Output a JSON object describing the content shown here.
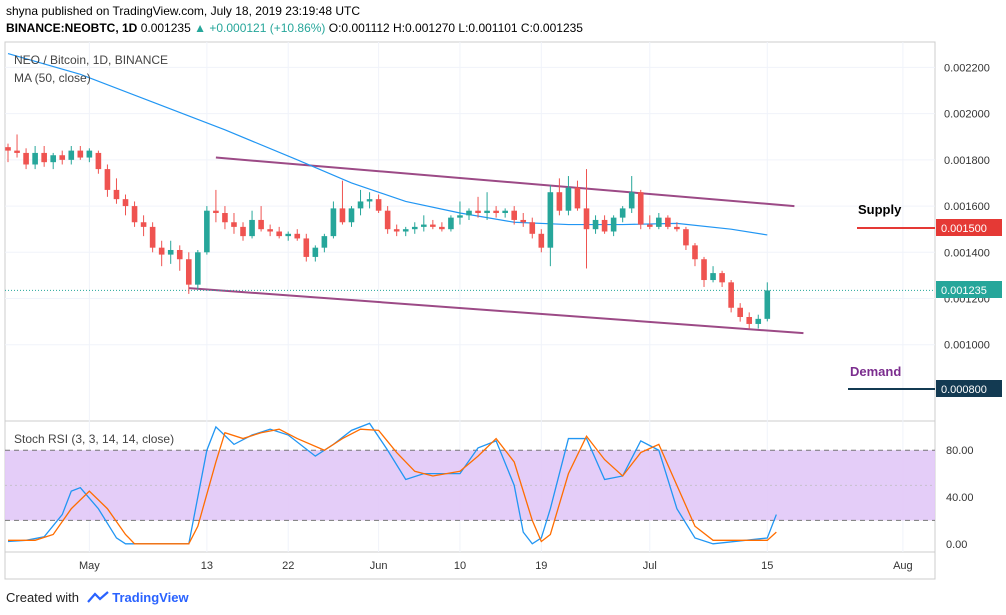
{
  "header": {
    "published_line": "shyna published on TradingView.com, July 18, 2019 23:19:48 UTC",
    "symbol_line": "BINANCE:NEOBTC, 1D",
    "last_price": "0.001235",
    "change": "+0.000121 (+10.86%)",
    "ohlc": "O:0.001112 H:0.001270 L:0.001101 C:0.001235"
  },
  "main_pane": {
    "symbol_label": "NEO / Bitcoin, 1D, BINANCE",
    "ma_label": "MA (50, close)",
    "supply_label": "Supply",
    "demand_label": "Demand",
    "current_price_tag": "0.001235",
    "supply_price_tag": "0.001500",
    "demand_price_tag": "0.000800"
  },
  "rsi_pane": {
    "label": "Stoch RSI (3, 3, 14, 14, close)"
  },
  "footer": {
    "created_with": "Created with",
    "brand": "TradingView"
  },
  "colors": {
    "up": "#26a69a",
    "down": "#ef5350",
    "ma": "#2196f3",
    "channel": "#9c4a86",
    "supply": "#e53935",
    "demand_tag": "#133a52",
    "rsi_k": "#2196f3",
    "rsi_d": "#ff6d00",
    "rsi_band": "#e1c8f7"
  },
  "chart_data": [
    {
      "type": "candlestick",
      "title": "NEO / Bitcoin, 1D, BINANCE",
      "y_ticks": [
        0.001,
        0.0012,
        0.0014,
        0.0016,
        0.0018,
        0.002,
        0.0022
      ],
      "y_tick_labels": [
        "0.001000",
        "0.001200",
        "0.001400",
        "0.001600",
        "0.001800",
        "0.002000",
        "0.002200"
      ],
      "ylim": [
        0.00067,
        0.00231
      ],
      "x_tick_labels": [
        "May",
        "13",
        "22",
        "Jun",
        "10",
        "19",
        "Jul",
        "15",
        "Aug"
      ],
      "x_tick_index": [
        9,
        22,
        31,
        41,
        50,
        59,
        71,
        84,
        99
      ],
      "x_range": [
        0,
        102
      ],
      "candles": [
        {
          "o": 0.001855,
          "h": 0.00187,
          "l": 0.00179,
          "c": 0.00184
        },
        {
          "o": 0.00184,
          "h": 0.00191,
          "l": 0.00181,
          "c": 0.00183
        },
        {
          "o": 0.00183,
          "h": 0.00185,
          "l": 0.00176,
          "c": 0.00178
        },
        {
          "o": 0.00178,
          "h": 0.00186,
          "l": 0.00176,
          "c": 0.00183
        },
        {
          "o": 0.00183,
          "h": 0.00186,
          "l": 0.00177,
          "c": 0.00179
        },
        {
          "o": 0.00179,
          "h": 0.00183,
          "l": 0.00176,
          "c": 0.00182
        },
        {
          "o": 0.00182,
          "h": 0.00184,
          "l": 0.00178,
          "c": 0.0018
        },
        {
          "o": 0.0018,
          "h": 0.00186,
          "l": 0.00178,
          "c": 0.00184
        },
        {
          "o": 0.00184,
          "h": 0.00186,
          "l": 0.0018,
          "c": 0.00181
        },
        {
          "o": 0.00181,
          "h": 0.00185,
          "l": 0.00179,
          "c": 0.00184
        },
        {
          "o": 0.00183,
          "h": 0.00184,
          "l": 0.00174,
          "c": 0.00176
        },
        {
          "o": 0.00176,
          "h": 0.00178,
          "l": 0.00164,
          "c": 0.00167
        },
        {
          "o": 0.00167,
          "h": 0.00172,
          "l": 0.00161,
          "c": 0.00163
        },
        {
          "o": 0.00163,
          "h": 0.00165,
          "l": 0.00156,
          "c": 0.0016
        },
        {
          "o": 0.0016,
          "h": 0.00162,
          "l": 0.00151,
          "c": 0.00153
        },
        {
          "o": 0.00153,
          "h": 0.00156,
          "l": 0.00147,
          "c": 0.00151
        },
        {
          "o": 0.00151,
          "h": 0.00153,
          "l": 0.0014,
          "c": 0.00142
        },
        {
          "o": 0.00142,
          "h": 0.00145,
          "l": 0.00134,
          "c": 0.00139
        },
        {
          "o": 0.00139,
          "h": 0.00145,
          "l": 0.00135,
          "c": 0.00141
        },
        {
          "o": 0.00141,
          "h": 0.00143,
          "l": 0.00132,
          "c": 0.00137
        },
        {
          "o": 0.00137,
          "h": 0.0014,
          "l": 0.00122,
          "c": 0.00126
        },
        {
          "o": 0.00126,
          "h": 0.00141,
          "l": 0.00124,
          "c": 0.0014
        },
        {
          "o": 0.0014,
          "h": 0.0016,
          "l": 0.00139,
          "c": 0.00158
        },
        {
          "o": 0.00158,
          "h": 0.00167,
          "l": 0.00153,
          "c": 0.00157
        },
        {
          "o": 0.00157,
          "h": 0.0016,
          "l": 0.0015,
          "c": 0.00153
        },
        {
          "o": 0.00153,
          "h": 0.00157,
          "l": 0.00148,
          "c": 0.00151
        },
        {
          "o": 0.00151,
          "h": 0.00153,
          "l": 0.00145,
          "c": 0.00147
        },
        {
          "o": 0.00147,
          "h": 0.00158,
          "l": 0.00146,
          "c": 0.00154
        },
        {
          "o": 0.00154,
          "h": 0.0016,
          "l": 0.00149,
          "c": 0.0015
        },
        {
          "o": 0.0015,
          "h": 0.00152,
          "l": 0.00147,
          "c": 0.00149
        },
        {
          "o": 0.00149,
          "h": 0.00151,
          "l": 0.00146,
          "c": 0.00147
        },
        {
          "o": 0.00147,
          "h": 0.00149,
          "l": 0.00145,
          "c": 0.00148
        },
        {
          "o": 0.00148,
          "h": 0.0015,
          "l": 0.00145,
          "c": 0.00146
        },
        {
          "o": 0.00146,
          "h": 0.00148,
          "l": 0.00136,
          "c": 0.00138
        },
        {
          "o": 0.00138,
          "h": 0.00143,
          "l": 0.00136,
          "c": 0.00142
        },
        {
          "o": 0.00142,
          "h": 0.00148,
          "l": 0.0014,
          "c": 0.00147
        },
        {
          "o": 0.00147,
          "h": 0.00162,
          "l": 0.00146,
          "c": 0.00159
        },
        {
          "o": 0.00159,
          "h": 0.00171,
          "l": 0.00152,
          "c": 0.00153
        },
        {
          "o": 0.00153,
          "h": 0.0016,
          "l": 0.00151,
          "c": 0.00159
        },
        {
          "o": 0.00159,
          "h": 0.00167,
          "l": 0.00156,
          "c": 0.00162
        },
        {
          "o": 0.00162,
          "h": 0.00166,
          "l": 0.00159,
          "c": 0.00163
        },
        {
          "o": 0.00163,
          "h": 0.00165,
          "l": 0.00157,
          "c": 0.00158
        },
        {
          "o": 0.00158,
          "h": 0.0016,
          "l": 0.00148,
          "c": 0.0015
        },
        {
          "o": 0.0015,
          "h": 0.00152,
          "l": 0.00147,
          "c": 0.00149
        },
        {
          "o": 0.00149,
          "h": 0.00151,
          "l": 0.00147,
          "c": 0.0015
        },
        {
          "o": 0.0015,
          "h": 0.00153,
          "l": 0.00148,
          "c": 0.00151
        },
        {
          "o": 0.00151,
          "h": 0.00156,
          "l": 0.00149,
          "c": 0.00152
        },
        {
          "o": 0.00152,
          "h": 0.00154,
          "l": 0.0015,
          "c": 0.00151
        },
        {
          "o": 0.00151,
          "h": 0.00153,
          "l": 0.00149,
          "c": 0.0015
        },
        {
          "o": 0.0015,
          "h": 0.00156,
          "l": 0.00149,
          "c": 0.00155
        },
        {
          "o": 0.00155,
          "h": 0.00162,
          "l": 0.00152,
          "c": 0.00156
        },
        {
          "o": 0.00156,
          "h": 0.00159,
          "l": 0.00154,
          "c": 0.00158
        },
        {
          "o": 0.00158,
          "h": 0.00164,
          "l": 0.00155,
          "c": 0.00157
        },
        {
          "o": 0.00157,
          "h": 0.00166,
          "l": 0.00154,
          "c": 0.00158
        },
        {
          "o": 0.00158,
          "h": 0.0016,
          "l": 0.00155,
          "c": 0.00157
        },
        {
          "o": 0.00157,
          "h": 0.00159,
          "l": 0.00155,
          "c": 0.00158
        },
        {
          "o": 0.00158,
          "h": 0.0016,
          "l": 0.00152,
          "c": 0.00154
        },
        {
          "o": 0.00154,
          "h": 0.00157,
          "l": 0.00151,
          "c": 0.00153
        },
        {
          "o": 0.00153,
          "h": 0.00155,
          "l": 0.00146,
          "c": 0.00148
        },
        {
          "o": 0.00148,
          "h": 0.0015,
          "l": 0.0014,
          "c": 0.00142
        },
        {
          "o": 0.00142,
          "h": 0.00169,
          "l": 0.00134,
          "c": 0.00166
        },
        {
          "o": 0.00166,
          "h": 0.00172,
          "l": 0.00156,
          "c": 0.00158
        },
        {
          "o": 0.00158,
          "h": 0.00173,
          "l": 0.00156,
          "c": 0.00168
        },
        {
          "o": 0.00168,
          "h": 0.00171,
          "l": 0.00158,
          "c": 0.00159
        },
        {
          "o": 0.00159,
          "h": 0.00176,
          "l": 0.00133,
          "c": 0.0015
        },
        {
          "o": 0.0015,
          "h": 0.00156,
          "l": 0.00148,
          "c": 0.00154
        },
        {
          "o": 0.00154,
          "h": 0.00156,
          "l": 0.00148,
          "c": 0.00149
        },
        {
          "o": 0.00149,
          "h": 0.00156,
          "l": 0.00147,
          "c": 0.00155
        },
        {
          "o": 0.00155,
          "h": 0.0016,
          "l": 0.00153,
          "c": 0.00159
        },
        {
          "o": 0.00159,
          "h": 0.00173,
          "l": 0.00157,
          "c": 0.00166
        },
        {
          "o": 0.00166,
          "h": 0.00167,
          "l": 0.0015,
          "c": 0.00152
        },
        {
          "o": 0.00152,
          "h": 0.00156,
          "l": 0.0015,
          "c": 0.00151
        },
        {
          "o": 0.00151,
          "h": 0.00157,
          "l": 0.0015,
          "c": 0.00155
        },
        {
          "o": 0.00155,
          "h": 0.00156,
          "l": 0.0015,
          "c": 0.00151
        },
        {
          "o": 0.00151,
          "h": 0.00153,
          "l": 0.00149,
          "c": 0.0015
        },
        {
          "o": 0.0015,
          "h": 0.00151,
          "l": 0.00141,
          "c": 0.00143
        },
        {
          "o": 0.00143,
          "h": 0.00144,
          "l": 0.00134,
          "c": 0.00137
        },
        {
          "o": 0.00137,
          "h": 0.00138,
          "l": 0.00125,
          "c": 0.00128
        },
        {
          "o": 0.00128,
          "h": 0.00134,
          "l": 0.00127,
          "c": 0.00131
        },
        {
          "o": 0.00131,
          "h": 0.00132,
          "l": 0.00125,
          "c": 0.00127
        },
        {
          "o": 0.00127,
          "h": 0.00128,
          "l": 0.00114,
          "c": 0.00116
        },
        {
          "o": 0.00116,
          "h": 0.00118,
          "l": 0.0011,
          "c": 0.00112
        },
        {
          "o": 0.00112,
          "h": 0.00114,
          "l": 0.00107,
          "c": 0.00109
        },
        {
          "o": 0.00109,
          "h": 0.00113,
          "l": 0.00107,
          "c": 0.001112
        },
        {
          "o": 0.001112,
          "h": 0.00127,
          "l": 0.001101,
          "c": 0.001235
        }
      ],
      "ma50": [
        {
          "i": 0,
          "v": 0.00226
        },
        {
          "i": 8,
          "v": 0.00217
        },
        {
          "i": 16,
          "v": 0.00205
        },
        {
          "i": 24,
          "v": 0.00193
        },
        {
          "i": 32,
          "v": 0.0018
        },
        {
          "i": 38,
          "v": 0.0017
        },
        {
          "i": 44,
          "v": 0.00162
        },
        {
          "i": 50,
          "v": 0.00157
        },
        {
          "i": 56,
          "v": 0.00153
        },
        {
          "i": 62,
          "v": 0.00152
        },
        {
          "i": 68,
          "v": 0.00152
        },
        {
          "i": 74,
          "v": 0.001525
        },
        {
          "i": 80,
          "v": 0.0015
        },
        {
          "i": 84,
          "v": 0.001475
        }
      ],
      "channel_upper": [
        {
          "i": 23,
          "v": 0.00181
        },
        {
          "i": 87,
          "v": 0.0016
        }
      ],
      "channel_lower": [
        {
          "i": 20,
          "v": 0.001245
        },
        {
          "i": 88,
          "v": 0.00105
        }
      ],
      "supply_level": 0.0015,
      "demand_level": 0.0008,
      "current_price": 0.001235
    },
    {
      "type": "line",
      "title": "Stoch RSI (3, 3, 14, 14, close)",
      "y_ticks": [
        0,
        40,
        80
      ],
      "y_tick_labels": [
        "0.00",
        "40.00",
        "80.00"
      ],
      "ylim": [
        -7,
        105
      ],
      "band": [
        20,
        80
      ],
      "x_range": [
        0,
        102
      ],
      "series": [
        {
          "name": "",
          "values": [
            {
              "i": 0,
              "v": 2
            },
            {
              "i": 2,
              "v": 3
            },
            {
              "i": 4,
              "v": 6
            },
            {
              "i": 6,
              "v": 25
            },
            {
              "i": 7,
              "v": 45
            },
            {
              "i": 8,
              "v": 48
            },
            {
              "i": 10,
              "v": 30
            },
            {
              "i": 12,
              "v": 5
            },
            {
              "i": 13,
              "v": 0
            },
            {
              "i": 20,
              "v": 0
            },
            {
              "i": 21,
              "v": 40
            },
            {
              "i": 22,
              "v": 80
            },
            {
              "i": 23,
              "v": 100
            },
            {
              "i": 25,
              "v": 85
            },
            {
              "i": 27,
              "v": 93
            },
            {
              "i": 29,
              "v": 98
            },
            {
              "i": 31,
              "v": 93
            },
            {
              "i": 34,
              "v": 75
            },
            {
              "i": 36,
              "v": 85
            },
            {
              "i": 38,
              "v": 97
            },
            {
              "i": 40,
              "v": 103
            },
            {
              "i": 42,
              "v": 80
            },
            {
              "i": 44,
              "v": 55
            },
            {
              "i": 46,
              "v": 60
            },
            {
              "i": 50,
              "v": 60
            },
            {
              "i": 52,
              "v": 82
            },
            {
              "i": 54,
              "v": 88
            },
            {
              "i": 56,
              "v": 50
            },
            {
              "i": 57,
              "v": 10
            },
            {
              "i": 58,
              "v": 0
            },
            {
              "i": 59,
              "v": 5
            },
            {
              "i": 60,
              "v": 30
            },
            {
              "i": 62,
              "v": 90
            },
            {
              "i": 64,
              "v": 90
            },
            {
              "i": 66,
              "v": 55
            },
            {
              "i": 68,
              "v": 58
            },
            {
              "i": 70,
              "v": 88
            },
            {
              "i": 72,
              "v": 80
            },
            {
              "i": 74,
              "v": 30
            },
            {
              "i": 76,
              "v": 5
            },
            {
              "i": 78,
              "v": 0
            },
            {
              "i": 84,
              "v": 5
            },
            {
              "i": 85,
              "v": 25
            }
          ]
        },
        {
          "name": "",
          "values": [
            {
              "i": 0,
              "v": 3
            },
            {
              "i": 3,
              "v": 3
            },
            {
              "i": 5,
              "v": 8
            },
            {
              "i": 7,
              "v": 30
            },
            {
              "i": 9,
              "v": 45
            },
            {
              "i": 11,
              "v": 30
            },
            {
              "i": 13,
              "v": 8
            },
            {
              "i": 14,
              "v": 0
            },
            {
              "i": 20,
              "v": 0
            },
            {
              "i": 21,
              "v": 15
            },
            {
              "i": 23,
              "v": 70
            },
            {
              "i": 24,
              "v": 95
            },
            {
              "i": 26,
              "v": 90
            },
            {
              "i": 28,
              "v": 95
            },
            {
              "i": 30,
              "v": 98
            },
            {
              "i": 32,
              "v": 90
            },
            {
              "i": 35,
              "v": 80
            },
            {
              "i": 37,
              "v": 90
            },
            {
              "i": 39,
              "v": 98
            },
            {
              "i": 41,
              "v": 97
            },
            {
              "i": 43,
              "v": 78
            },
            {
              "i": 45,
              "v": 62
            },
            {
              "i": 47,
              "v": 58
            },
            {
              "i": 50,
              "v": 62
            },
            {
              "i": 52,
              "v": 75
            },
            {
              "i": 54,
              "v": 90
            },
            {
              "i": 56,
              "v": 70
            },
            {
              "i": 58,
              "v": 20
            },
            {
              "i": 59,
              "v": 2
            },
            {
              "i": 60,
              "v": 8
            },
            {
              "i": 62,
              "v": 60
            },
            {
              "i": 64,
              "v": 92
            },
            {
              "i": 66,
              "v": 72
            },
            {
              "i": 68,
              "v": 58
            },
            {
              "i": 70,
              "v": 78
            },
            {
              "i": 72,
              "v": 85
            },
            {
              "i": 74,
              "v": 50
            },
            {
              "i": 76,
              "v": 15
            },
            {
              "i": 78,
              "v": 3
            },
            {
              "i": 84,
              "v": 3
            },
            {
              "i": 85,
              "v": 10
            }
          ]
        }
      ]
    }
  ]
}
